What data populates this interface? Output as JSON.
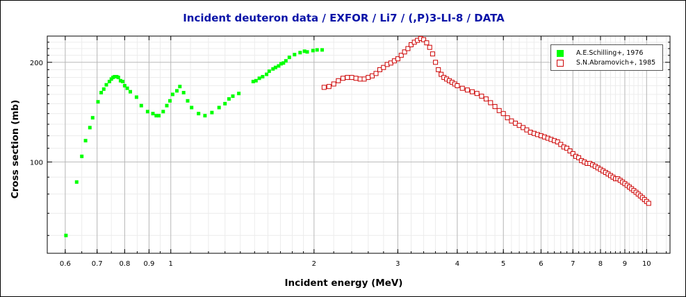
{
  "chart_data": {
    "type": "scatter",
    "title": "Incident deuteron data / EXFOR / Li7 / (,P)3-LI-8 / DATA",
    "xlabel": "Incident energy (MeV)",
    "ylabel": "Cross section (mb)",
    "xscale": "log",
    "yscale": "log",
    "xlim": [
      0.55,
      11.2
    ],
    "ylim": [
      53,
      240
    ],
    "x_ticks": [
      0.6,
      0.7,
      0.8,
      0.9,
      1,
      2,
      3,
      4,
      5,
      6,
      7,
      8,
      9,
      10
    ],
    "x_tick_labels": [
      "0.6",
      "0.7",
      "0.8",
      "0.9",
      "1",
      "2",
      "3",
      "4",
      "5",
      "6",
      "7",
      "8",
      "9",
      "10"
    ],
    "y_ticks": [
      100,
      200
    ],
    "y_tick_labels": [
      "100",
      "200"
    ],
    "grid": true,
    "legend_position": "top-right",
    "series": [
      {
        "name": "A.E.Schilling+, 1976",
        "marker": "filled-square",
        "color": "#00ff00",
        "x": [
          0.602,
          0.634,
          0.65,
          0.662,
          0.676,
          0.685,
          0.703,
          0.714,
          0.723,
          0.732,
          0.743,
          0.75,
          0.756,
          0.762,
          0.77,
          0.776,
          0.784,
          0.792,
          0.8,
          0.81,
          0.822,
          0.847,
          0.867,
          0.894,
          0.917,
          0.932,
          0.944,
          0.964,
          0.981,
          0.996,
          1.009,
          1.03,
          1.045,
          1.064,
          1.085,
          1.106,
          1.144,
          1.18,
          1.22,
          1.263,
          1.3,
          1.325,
          1.35,
          1.39,
          1.49,
          1.51,
          1.535,
          1.56,
          1.59,
          1.61,
          1.64,
          1.66,
          1.685,
          1.705,
          1.725,
          1.745,
          1.775,
          1.82,
          1.87,
          1.91,
          1.935,
          1.99,
          2.03,
          2.08
        ],
        "y": [
          60,
          87,
          104,
          116,
          127,
          136,
          152,
          162,
          166,
          171,
          175,
          178,
          180,
          181,
          181,
          180,
          176,
          175,
          170,
          167,
          163,
          157,
          148,
          142,
          140,
          138,
          138,
          142,
          148,
          153,
          160,
          164,
          169,
          162,
          153,
          146,
          140,
          138,
          141,
          146,
          150,
          155,
          158,
          161,
          175,
          176,
          179,
          181,
          184,
          188,
          191,
          193,
          195,
          198,
          199,
          202,
          207,
          211,
          214,
          216,
          215,
          217,
          218,
          218
        ]
      },
      {
        "name": "S.N.Abramovich+, 1985",
        "marker": "open-square",
        "color": "#cc0000",
        "x": [
          2.1,
          2.15,
          2.2,
          2.25,
          2.3,
          2.35,
          2.4,
          2.45,
          2.5,
          2.55,
          2.6,
          2.65,
          2.7,
          2.75,
          2.8,
          2.85,
          2.9,
          2.95,
          3.0,
          3.05,
          3.1,
          3.15,
          3.2,
          3.25,
          3.3,
          3.35,
          3.4,
          3.45,
          3.5,
          3.55,
          3.6,
          3.65,
          3.7,
          3.75,
          3.8,
          3.85,
          3.9,
          3.95,
          4.0,
          4.1,
          4.2,
          4.3,
          4.4,
          4.5,
          4.6,
          4.7,
          4.8,
          4.9,
          5.0,
          5.1,
          5.2,
          5.3,
          5.4,
          5.5,
          5.6,
          5.7,
          5.8,
          5.9,
          6.0,
          6.1,
          6.2,
          6.3,
          6.4,
          6.5,
          6.6,
          6.7,
          6.8,
          6.9,
          7.0,
          7.1,
          7.2,
          7.3,
          7.4,
          7.5,
          7.6,
          7.7,
          7.8,
          7.9,
          8.0,
          8.1,
          8.2,
          8.3,
          8.4,
          8.5,
          8.6,
          8.7,
          8.8,
          8.9,
          9.0,
          9.1,
          9.2,
          9.3,
          9.4,
          9.5,
          9.6,
          9.7,
          9.8,
          9.9,
          10.0,
          10.1
        ],
        "y": [
          168,
          169,
          172,
          176,
          179,
          180,
          180,
          179,
          178,
          178,
          180,
          182,
          185,
          190,
          193,
          197,
          199,
          202,
          205,
          210,
          215,
          220,
          226,
          230,
          233,
          236,
          234,
          229,
          222,
          212,
          200,
          190,
          184,
          180,
          178,
          176,
          174,
          172,
          170,
          167,
          165,
          163,
          161,
          158,
          155,
          151,
          147,
          143,
          140,
          136,
          133,
          131,
          129,
          127,
          125,
          123,
          122,
          121,
          120,
          119,
          118,
          117,
          116,
          115,
          113,
          111,
          110,
          108,
          106,
          104,
          103,
          101,
          100,
          99,
          99,
          98,
          97,
          96,
          95,
          94,
          93,
          92,
          91,
          90,
          89,
          89,
          88,
          87,
          86,
          85,
          84,
          83,
          82,
          81,
          80,
          79,
          78,
          77,
          76,
          75
        ]
      }
    ]
  }
}
